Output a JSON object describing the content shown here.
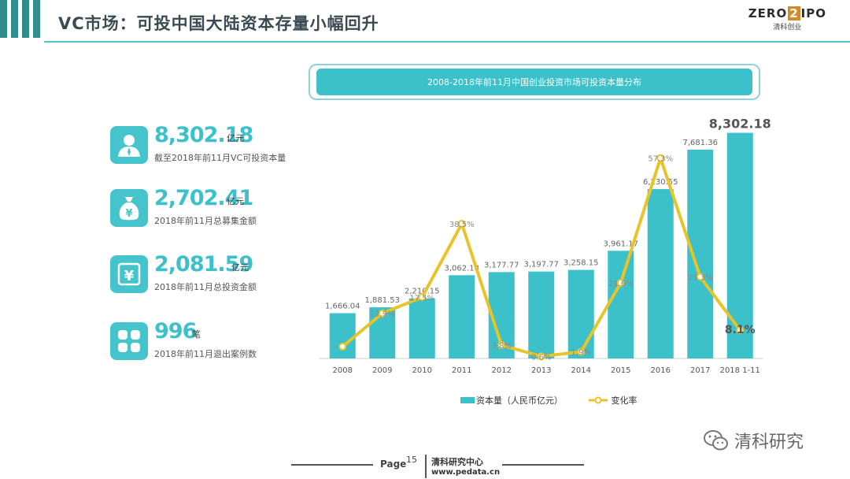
{
  "page": {
    "title": "VC市场：可投中国大陆资本存量小幅回升",
    "logo_main_left": "ZERO",
    "logo_main_box": "2",
    "logo_main_right": "IPO",
    "logo_sub": "清科创业"
  },
  "stats": [
    {
      "value": "8,302.18",
      "unit": "亿元",
      "desc": "截至2018年前11月VC可投资本量",
      "icon": "user-icon"
    },
    {
      "value": "2,702.41",
      "unit": "亿元",
      "desc": "2018年前11月总募集金额",
      "icon": "money-bag-icon"
    },
    {
      "value": "2,081.59",
      "unit": "亿元",
      "desc": "2018年前11月总投资金额",
      "icon": "yen-icon"
    },
    {
      "value": "996",
      "unit": "笔",
      "desc": "2018年前11月退出案例数",
      "icon": "grid-icon"
    }
  ],
  "chart_data": {
    "type": "bar",
    "title": "2008-2018年前11月中国创业投资市场可投资本量分布",
    "categories": [
      "2008",
      "2009",
      "2010",
      "2011",
      "2012",
      "2013",
      "2014",
      "2015",
      "2016",
      "2017",
      "2018 1-11"
    ],
    "bar_labels": [
      "1,666.04",
      "1,881.53",
      "2,210.15",
      "3,062.18",
      "3,177.77",
      "3,197.77",
      "3,258.15",
      "3,961.17",
      "6,230.55",
      "7,681.36",
      "8,302.18"
    ],
    "series": [
      {
        "name": "资本量（人民币亿元）",
        "kind": "bar",
        "color": "#3cc0ca",
        "values": [
          1666.04,
          1881.53,
          2210.15,
          3062.18,
          3177.77,
          3197.77,
          3258.15,
          3961.17,
          6230.55,
          7681.36,
          8302.18
        ]
      },
      {
        "name": "变化率",
        "kind": "line",
        "color": "#e8c329",
        "values": [
          null,
          12.9,
          17.5,
          38.5,
          3.8,
          0.6,
          1.9,
          21.6,
          57.3,
          23.3,
          8.1
        ],
        "labels": [
          "",
          "12.9%",
          "17.5%",
          "38.5%",
          "3.8%",
          "0.6%",
          "1.9%",
          "21.6%",
          "57.3%",
          "23.3%",
          "8.1%"
        ]
      }
    ]
  },
  "footer": {
    "page_label": "Page",
    "page_number": "15",
    "brand": "清科研究中心",
    "url": "www.pedata.cn"
  },
  "watermark": {
    "text": "清科研究",
    "icon": "wechat-icon"
  }
}
